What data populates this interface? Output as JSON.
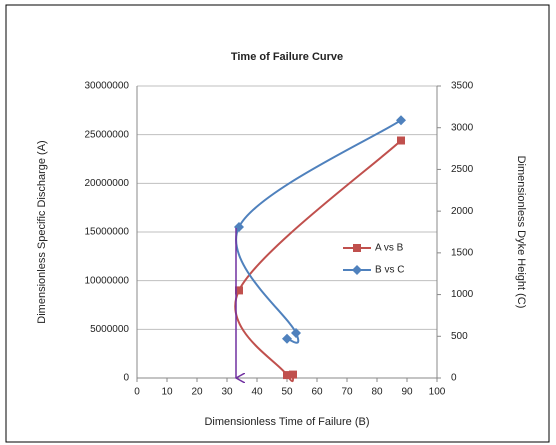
{
  "chart_data": {
    "type": "line",
    "title": "Time of Failure Curve",
    "x_label": "Dimensionless Time of Failure (B)",
    "y_label": "Dimensionless Specific Discharge (A)",
    "y2_label": "Dimensionless Dyke Height (C)",
    "xlim": [
      0,
      100
    ],
    "xticks": [
      0,
      10,
      20,
      30,
      40,
      50,
      60,
      70,
      80,
      90,
      100
    ],
    "ylim": [
      0,
      30000000
    ],
    "yticks": [
      0,
      5000000,
      10000000,
      15000000,
      20000000,
      25000000,
      30000000
    ],
    "y2lim": [
      0,
      3500
    ],
    "y2ticks": [
      0,
      500,
      1000,
      1500,
      2000,
      2500,
      3000,
      3500
    ],
    "grid": true,
    "legend": "center-right",
    "series": [
      {
        "name": "A vs B",
        "color": "#c0504d",
        "x": [
          88,
          34,
          50,
          52
        ],
        "values": [
          24400000,
          9000000,
          300000,
          350000
        ]
      },
      {
        "name": "B vs C",
        "color": "#4f81bd",
        "axis": "y2",
        "x": [
          50,
          53,
          34,
          88
        ],
        "values": [
          470,
          540,
          1810,
          3090
        ]
      }
    ]
  }
}
